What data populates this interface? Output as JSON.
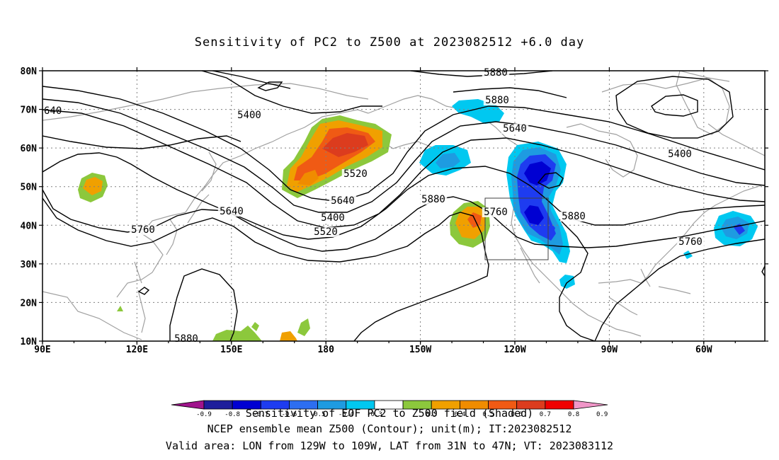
{
  "title": "Sensitivity of PC2 to Z500 at 2023082512 +6.0 day",
  "axes": {
    "lat_labels": [
      "80N",
      "70N",
      "60N",
      "50N",
      "40N",
      "30N",
      "20N",
      "10N"
    ],
    "lon_labels": [
      "90E",
      "120E",
      "150E",
      "180",
      "150W",
      "120W",
      "90W",
      "60W"
    ]
  },
  "contour_labels": [
    "5400",
    "5520",
    "5640",
    "5400",
    "5520",
    "5640",
    "5760",
    "5880",
    "5760",
    "5880",
    "5760",
    "5880",
    "5880",
    "5400",
    "5640",
    "5880"
  ],
  "colorbar": {
    "ticks": [
      "-0.9",
      "-0.8",
      "-0.7",
      "-0.6",
      "-0.5",
      "-0.4",
      "-0.3",
      "0.3",
      "0.4",
      "0.5",
      "0.6",
      "0.7",
      "0.8",
      "0.9"
    ],
    "colors": [
      "#a0148c",
      "#1e1e9b",
      "#0000d2",
      "#1e3cf0",
      "#2d6ef0",
      "#1e9be1",
      "#00c8f0",
      "#ffffff",
      "#8cc83c",
      "#f0a000",
      "#f08c00",
      "#f05a14",
      "#dc3c1e",
      "#f00000",
      "#f096c8"
    ],
    "label": "Sensitivity of EOF PC2 to Z500 field (Shaded)"
  },
  "captions": {
    "line1": "NCEP ensemble mean Z500 (Contour); unit(m); IT:2023082512",
    "line2": "Valid area: LON from 129W to 109W, LAT from 31N to 47N; VT: 2023083112"
  },
  "colors": {
    "coast": "#a0a0a0",
    "contour": "#000000",
    "grid": "#808080"
  }
}
